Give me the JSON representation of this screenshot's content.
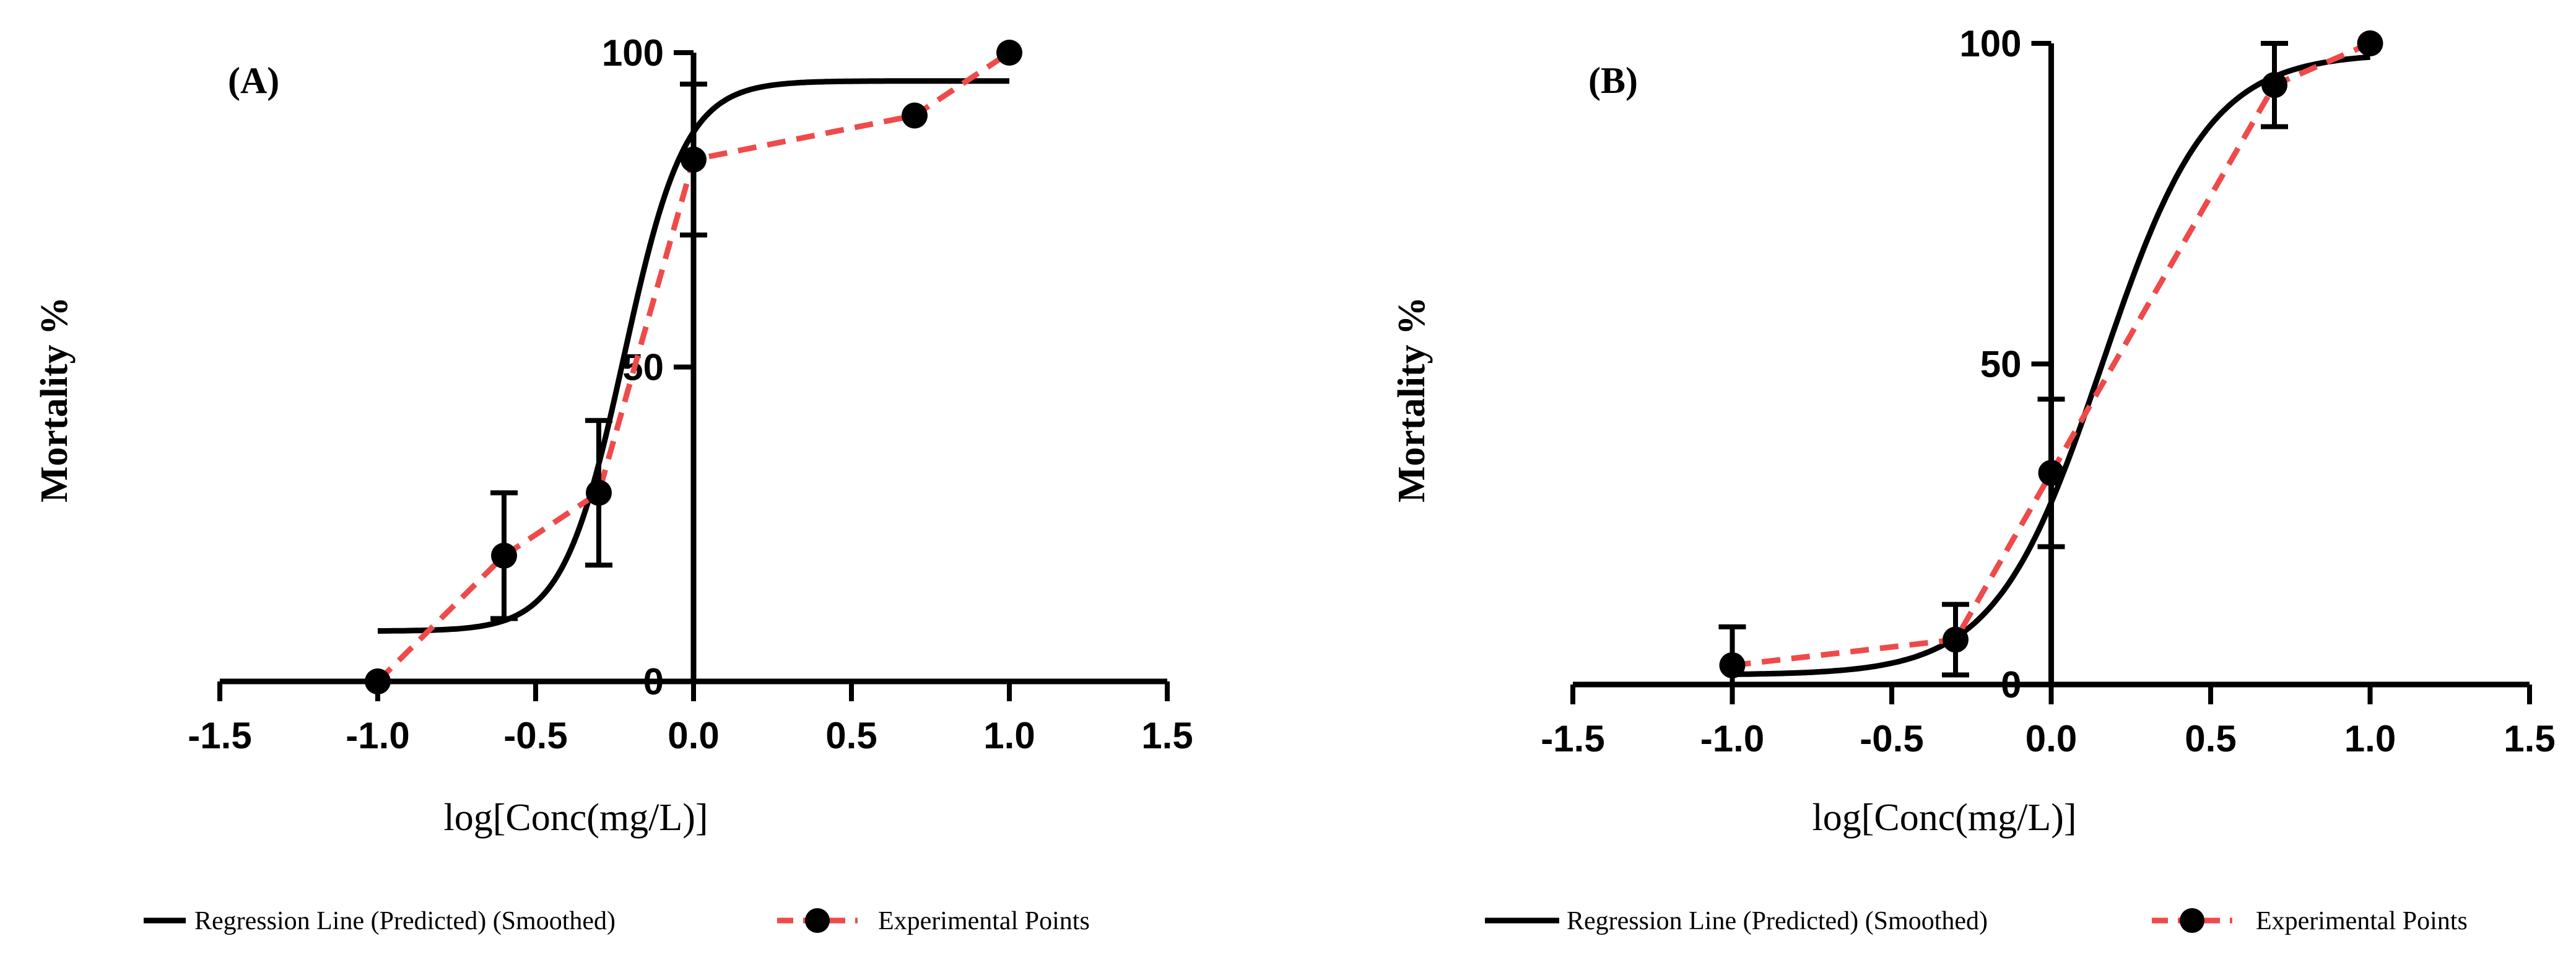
{
  "chart_data": [
    {
      "type": "line",
      "panel_label": "(A)",
      "xlabel": "log[Conc(mg/L)]",
      "ylabel": "Mortality %",
      "xlim": [
        -1.5,
        1.5
      ],
      "ylim": [
        0,
        100
      ],
      "x_ticks": [
        -1.5,
        -1.0,
        -0.5,
        0.0,
        0.5,
        1.0,
        1.5
      ],
      "x_tick_labels": [
        "-1.5",
        "-1.0",
        "-0.5",
        "0.0",
        "0.5",
        "1.0",
        "1.5"
      ],
      "y_ticks": [
        0,
        50,
        100
      ],
      "y_tick_labels": [
        "0",
        "50",
        "100"
      ],
      "regression": {
        "name": "Regression Line (Predicted) (Smoothed)",
        "bottom": 8,
        "top": 95.5,
        "logEC50": -0.22,
        "hill": 4.5,
        "x_start": -1.0,
        "x_end": 1.0,
        "color": "#000000"
      },
      "experimental": {
        "name": "Experimental Points",
        "color": "#ef4a4a",
        "x": [
          -1.0,
          -0.6,
          -0.3,
          0.0,
          0.7,
          1.0
        ],
        "y": [
          0,
          20,
          30,
          83,
          90,
          100
        ],
        "err": [
          0,
          10,
          11.5,
          12,
          0,
          0
        ]
      },
      "legend": {
        "regression_label": "Regression Line (Predicted) (Smoothed)",
        "points_label": "Experimental Points",
        "placement": "bottom"
      }
    },
    {
      "type": "line",
      "panel_label": "(B)",
      "xlabel": "log[Conc(mg/L)]",
      "ylabel": "Mortality %",
      "xlim": [
        -1.5,
        1.5
      ],
      "ylim": [
        0,
        100
      ],
      "x_ticks": [
        -1.5,
        -1.0,
        -0.5,
        0.0,
        0.5,
        1.0,
        1.5
      ],
      "x_tick_labels": [
        "-1.5",
        "-1.0",
        "-0.5",
        "0.0",
        "0.5",
        "1.0",
        "1.5"
      ],
      "y_ticks": [
        0,
        50,
        100
      ],
      "y_tick_labels": [
        "0",
        "50",
        "100"
      ],
      "regression": {
        "name": "Regression Line (Predicted) (Smoothed)",
        "bottom": 1.5,
        "top": 98.5,
        "logEC50": 0.16,
        "hill": 2.6,
        "x_start": -1.0,
        "x_end": 1.0,
        "color": "#000000"
      },
      "experimental": {
        "name": "Experimental Points",
        "color": "#ef4a4a",
        "x": [
          -1.0,
          -0.3,
          0.0,
          0.7,
          1.0
        ],
        "y": [
          3,
          7,
          33,
          93.5,
          100
        ],
        "err": [
          6,
          5.5,
          11.5,
          6.5,
          0
        ]
      },
      "legend": {
        "regression_label": "Regression Line (Predicted) (Smoothed)",
        "points_label": "Experimental Points",
        "placement": "bottom"
      }
    }
  ]
}
